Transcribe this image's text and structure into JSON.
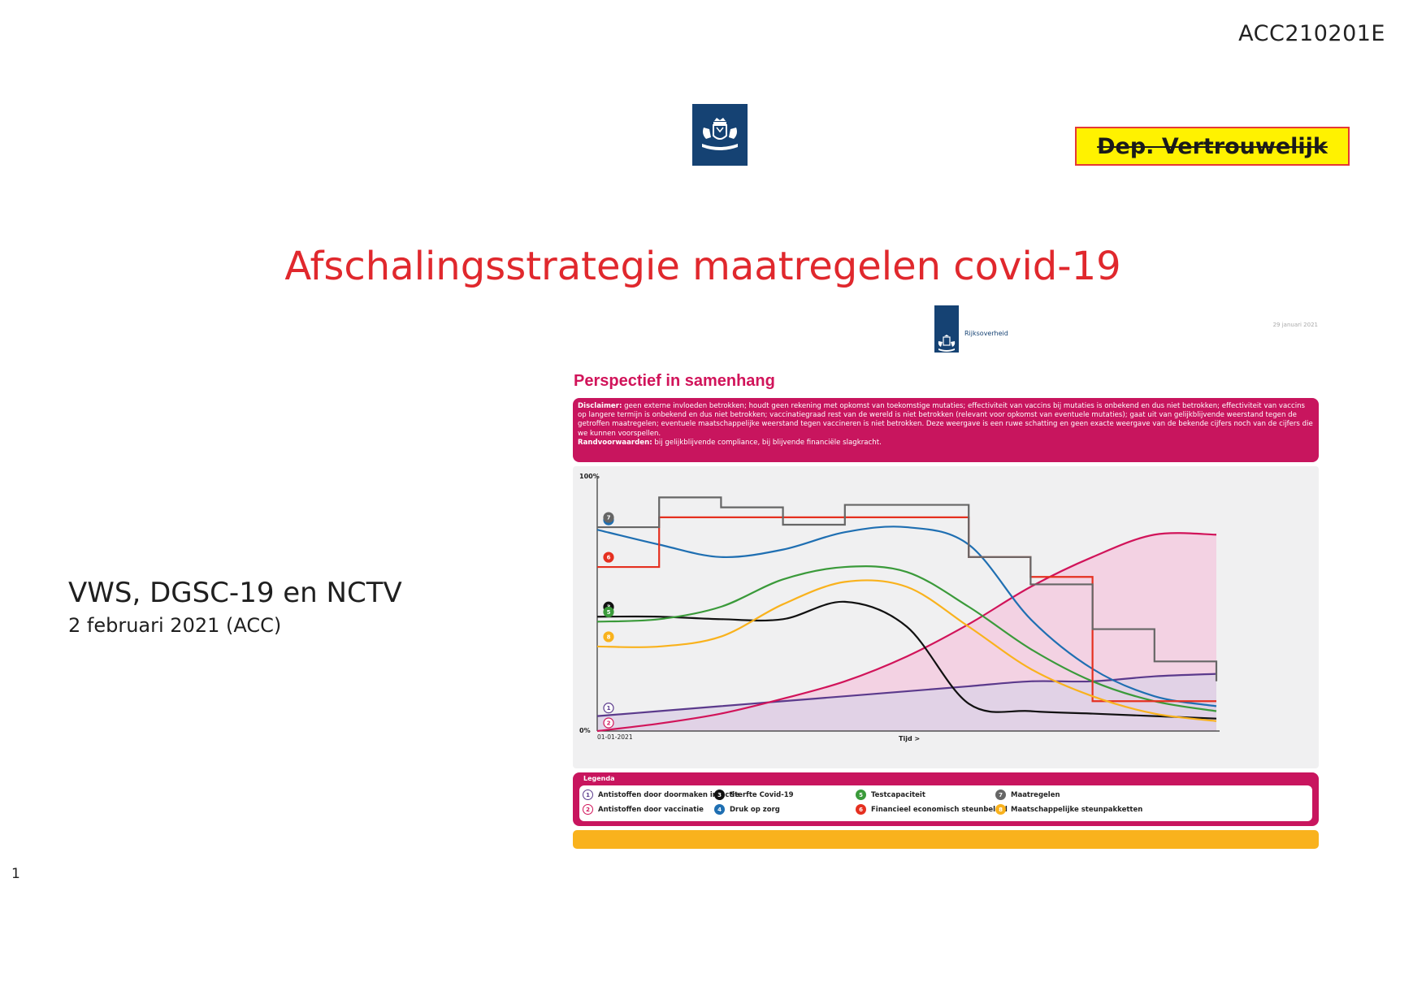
{
  "page": {
    "doc_id": "ACC210201E",
    "classification": "Dep. Vertrouwelijk",
    "title": "Afschalingsstrategie maatregelen covid-19",
    "organisations": "VWS, DGSC-19 en NCTV",
    "date": "2 februari 2021 (ACC)",
    "page_number": "1"
  },
  "embedded_slide": {
    "logo_text": "Rijksoverheid",
    "date": "29 januari 2021",
    "title": "Perspectief in samenhang",
    "disclaimer_label": "Disclaimer:",
    "disclaimer_text": "geen externe invloeden betrokken; houdt geen rekening met opkomst van toekomstige mutaties; effectiviteit van vaccins bij mutaties is onbekend en dus niet betrokken; effectiviteit van vaccins op langere termijn is onbekend en dus niet betrokken; vaccinatiegraad rest van de wereld is niet betrokken (relevant voor opkomst van eventuele mutaties); gaat uit van gelijkblijvende weerstand tegen de getroffen maatregelen; eventuele maatschappelijke weerstand tegen vaccineren is niet betrokken. Deze weergave is een ruwe schatting en geen exacte weergave van de bekende cijfers noch van de cijfers die we kunnen voorspellen.",
    "conditions_label": "Randvoorwaarden:",
    "conditions_text": "bij gelijkblijvende compliance, bij blijvende financiële slagkracht.",
    "legend_title": "Legenda",
    "legend": [
      {
        "num": "1",
        "label": "Antistoffen door doormaken infectie",
        "color": "#5b3a8c",
        "style": "outline"
      },
      {
        "num": "2",
        "label": "Antistoffen door vaccinatie",
        "color": "#d1145a",
        "style": "outline"
      },
      {
        "num": "3",
        "label": "Sterfte Covid-19",
        "color": "#111111",
        "style": "filled"
      },
      {
        "num": "4",
        "label": "Druk op zorg",
        "color": "#1f6fb2",
        "style": "filled"
      },
      {
        "num": "5",
        "label": "Testcapaciteit",
        "color": "#3a9a3a",
        "style": "filled"
      },
      {
        "num": "6",
        "label": "Financieel economisch steunbeleid",
        "color": "#e53020",
        "style": "filled"
      },
      {
        "num": "7",
        "label": "Maatregelen",
        "color": "#666666",
        "style": "filled"
      },
      {
        "num": "8",
        "label": "Maatschappelijke steunpakketten",
        "color": "#f9b21d",
        "style": "filled"
      }
    ]
  },
  "chart_data": {
    "type": "line",
    "title": "Perspectief in samenhang",
    "xlabel": "Tijd >",
    "ylabel": "",
    "x_start_label": "01-01-2021",
    "y_top_label": "100%",
    "y_bottom_label": "0%",
    "x": [
      0,
      10,
      20,
      30,
      40,
      50,
      60,
      70,
      80,
      90,
      100
    ],
    "ylim": [
      0,
      100
    ],
    "series": [
      {
        "id": "1",
        "name": "Antistoffen door doormaken infectie",
        "color": "#5b3a8c",
        "values": [
          6,
          8,
          10,
          12,
          14,
          16,
          18,
          20,
          20,
          22,
          23
        ],
        "fill": true,
        "fill_color": "#ddd2e6"
      },
      {
        "id": "2",
        "name": "Antistoffen door vaccinatie",
        "color": "#d1145a",
        "values": [
          0,
          3,
          7,
          13,
          20,
          30,
          43,
          58,
          70,
          79,
          79
        ],
        "fill": true,
        "fill_color": "#f3cde0"
      },
      {
        "id": "3",
        "name": "Sterfte Covid-19",
        "color": "#111111",
        "values": [
          46,
          46,
          45,
          45,
          52,
          42,
          11,
          8,
          7,
          6,
          5
        ]
      },
      {
        "id": "4",
        "name": "Druk op zorg",
        "color": "#1f6fb2",
        "values": [
          81,
          75,
          70,
          73,
          80,
          82,
          75,
          45,
          25,
          14,
          10
        ]
      },
      {
        "id": "5",
        "name": "Testcapaciteit",
        "color": "#3a9a3a",
        "values": [
          44,
          45,
          50,
          61,
          66,
          64,
          50,
          33,
          20,
          12,
          8
        ]
      },
      {
        "id": "6",
        "name": "Financieel economisch steunbeleid",
        "color": "#e53020",
        "values": [
          66,
          86,
          86,
          86,
          86,
          86,
          70,
          62,
          12,
          12,
          12
        ],
        "step": true
      },
      {
        "id": "7",
        "name": "Maatregelen",
        "color": "#666666",
        "values": [
          82,
          94,
          90,
          83,
          91,
          91,
          70,
          59,
          41,
          28,
          20
        ],
        "step": true
      },
      {
        "id": "8",
        "name": "Maatschappelijke steunpakketten",
        "color": "#f9b21d",
        "values": [
          34,
          34,
          38,
          51,
          60,
          58,
          42,
          25,
          14,
          7,
          4
        ]
      }
    ]
  }
}
